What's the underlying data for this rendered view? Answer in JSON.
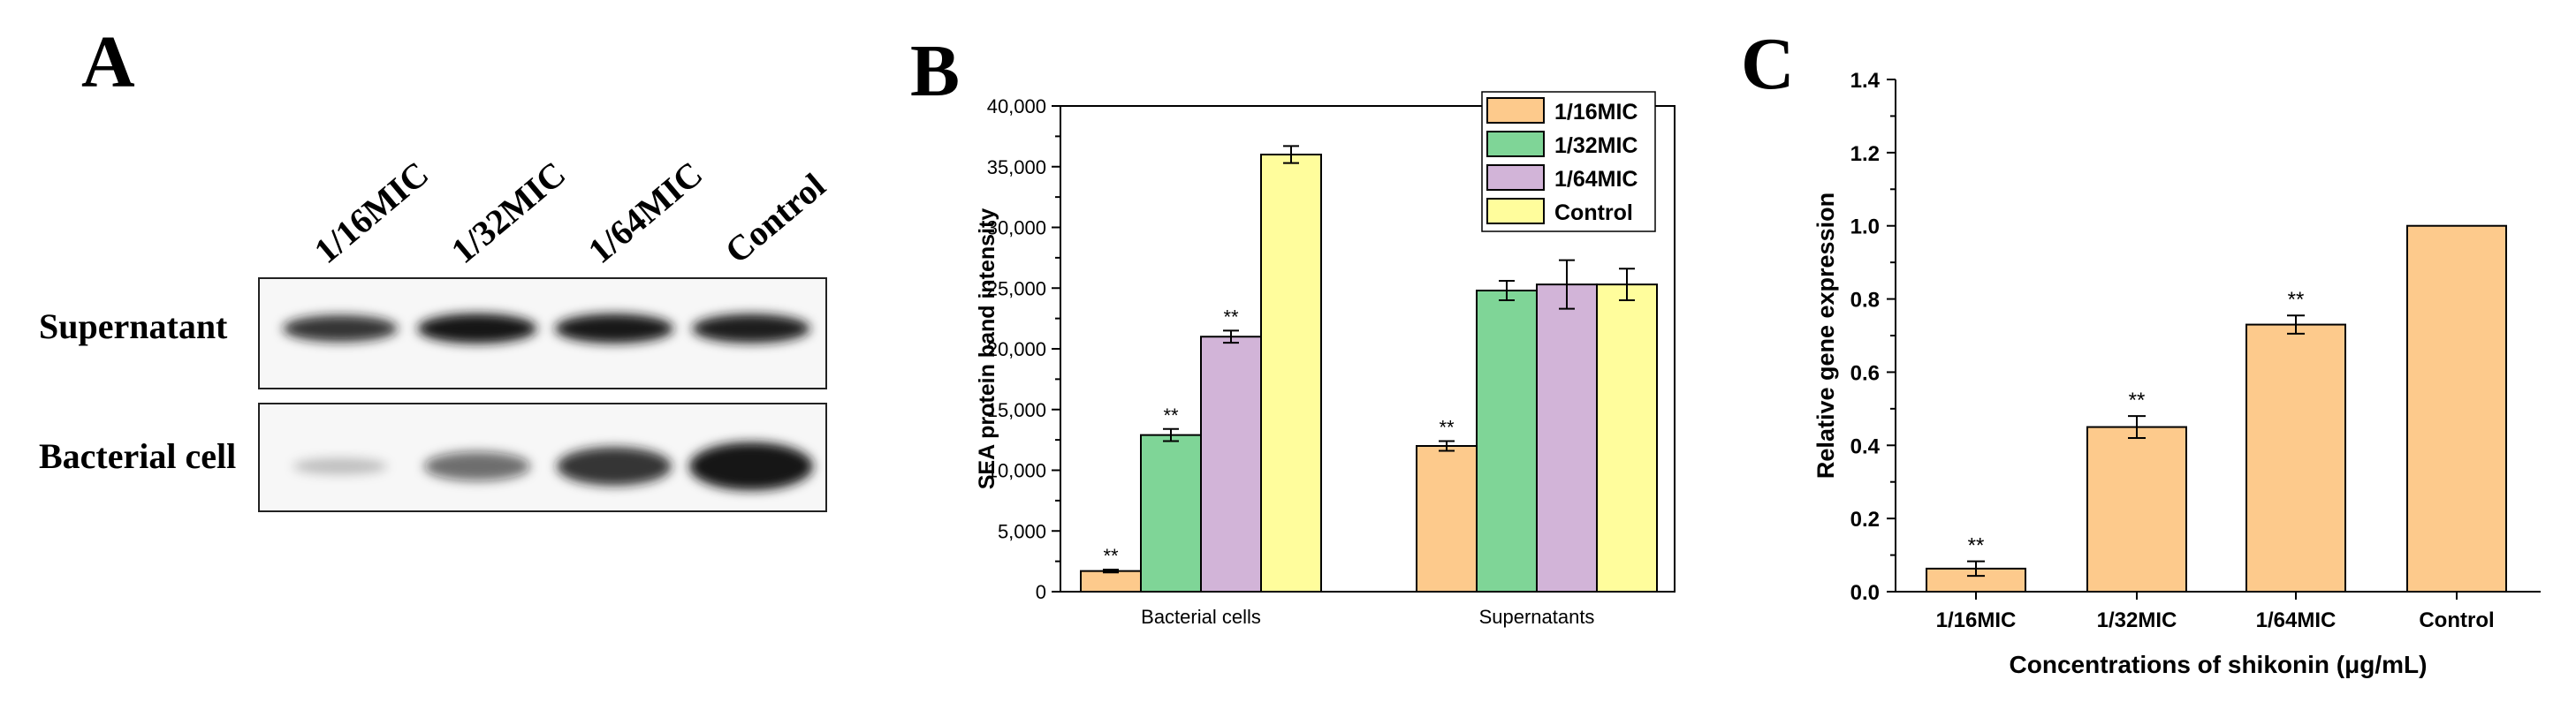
{
  "panel_letters": {
    "a": "A",
    "b": "B",
    "c": "C"
  },
  "blot": {
    "lanes": [
      "1/16MIC",
      "1/32MIC",
      "1/64MIC",
      "Control"
    ],
    "rows": [
      "Supernatant",
      "Bacterial cell"
    ],
    "band_intensity": {
      "Supernatant": [
        0.72,
        0.86,
        0.84,
        0.82
      ],
      "Bacterial cell": [
        0.08,
        0.45,
        0.72,
        1.0
      ]
    },
    "colors": {
      "band": "#141414",
      "membrane": "#f7f7f7",
      "border": "#222222"
    }
  },
  "chart_data": [
    {
      "panel": "B",
      "type": "bar",
      "categories": [
        "Bacterial cells",
        "Supernatants"
      ],
      "series": [
        {
          "name": "1/16MIC",
          "values": [
            1700,
            12000
          ],
          "errors": [
            120,
            400
          ],
          "significance": [
            "**",
            "**"
          ],
          "color": "#fdca8c"
        },
        {
          "name": "1/32MIC",
          "values": [
            12900,
            24800
          ],
          "errors": [
            500,
            800
          ],
          "significance": [
            "**",
            ""
          ],
          "color": "#7fd597"
        },
        {
          "name": "1/64MIC",
          "values": [
            21000,
            25300
          ],
          "errors": [
            500,
            2000
          ],
          "significance": [
            "**",
            ""
          ],
          "color": "#d2b4d8"
        },
        {
          "name": "Control",
          "values": [
            36000,
            25300
          ],
          "errors": [
            700,
            1300
          ],
          "significance": [
            "",
            ""
          ],
          "color": "#fffd9c"
        }
      ],
      "ylim": [
        0,
        40000
      ],
      "yticks": [
        0,
        5000,
        10000,
        15000,
        20000,
        25000,
        30000,
        35000,
        40000
      ],
      "ytick_labels": [
        "0",
        "5,000",
        "10,000",
        "15,000",
        "20,000",
        "25,000",
        "30,000",
        "35,000",
        "40,000"
      ],
      "xlabel": "",
      "ylabel": "SEA protein band intensity",
      "legend": "top-right"
    },
    {
      "panel": "C",
      "type": "bar",
      "categories": [
        "1/16MIC",
        "1/32MIC",
        "1/64MIC",
        "Control"
      ],
      "values": [
        0.063,
        0.45,
        0.73,
        1.0
      ],
      "errors": [
        0.02,
        0.03,
        0.025,
        0
      ],
      "significance": [
        "**",
        "**",
        "**",
        ""
      ],
      "color": "#fdca8c",
      "ylim": [
        0,
        1.4
      ],
      "yticks": [
        0,
        0.2,
        0.4,
        0.6,
        0.8,
        1.0,
        1.2,
        1.4
      ],
      "ytick_labels": [
        "0.0",
        "0.2",
        "0.4",
        "0.6",
        "0.8",
        "1.0",
        "1.2",
        "1.4"
      ],
      "xlabel": "Concentrations of shikonin (μg/mL)",
      "ylabel": "Relative gene expression"
    }
  ]
}
